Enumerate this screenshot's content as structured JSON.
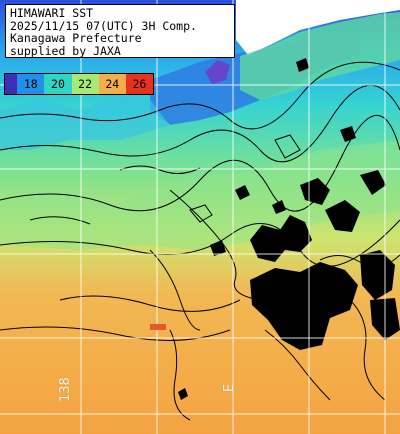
{
  "info": {
    "line1": "HIMAWARI SST",
    "line2": "2025/11/15 07(UTC) 3H Comp.",
    "line3": "Kanagawa Prefecture",
    "line4": "supplied by JAXA"
  },
  "scale": {
    "ticks": [
      "18",
      "20",
      "22",
      "24",
      "26"
    ],
    "colors": [
      "#3a2fb6",
      "#1f8fe8",
      "#2fd6c6",
      "#a6ea74",
      "#f4ad48",
      "#e8311f"
    ]
  },
  "grid": {
    "lon_label_1": "138",
    "lon_label_2": "E"
  },
  "colors": {
    "land": "#ffffff",
    "cloud": "#000000",
    "contour": "#000000",
    "gridline": "#ffffff"
  }
}
